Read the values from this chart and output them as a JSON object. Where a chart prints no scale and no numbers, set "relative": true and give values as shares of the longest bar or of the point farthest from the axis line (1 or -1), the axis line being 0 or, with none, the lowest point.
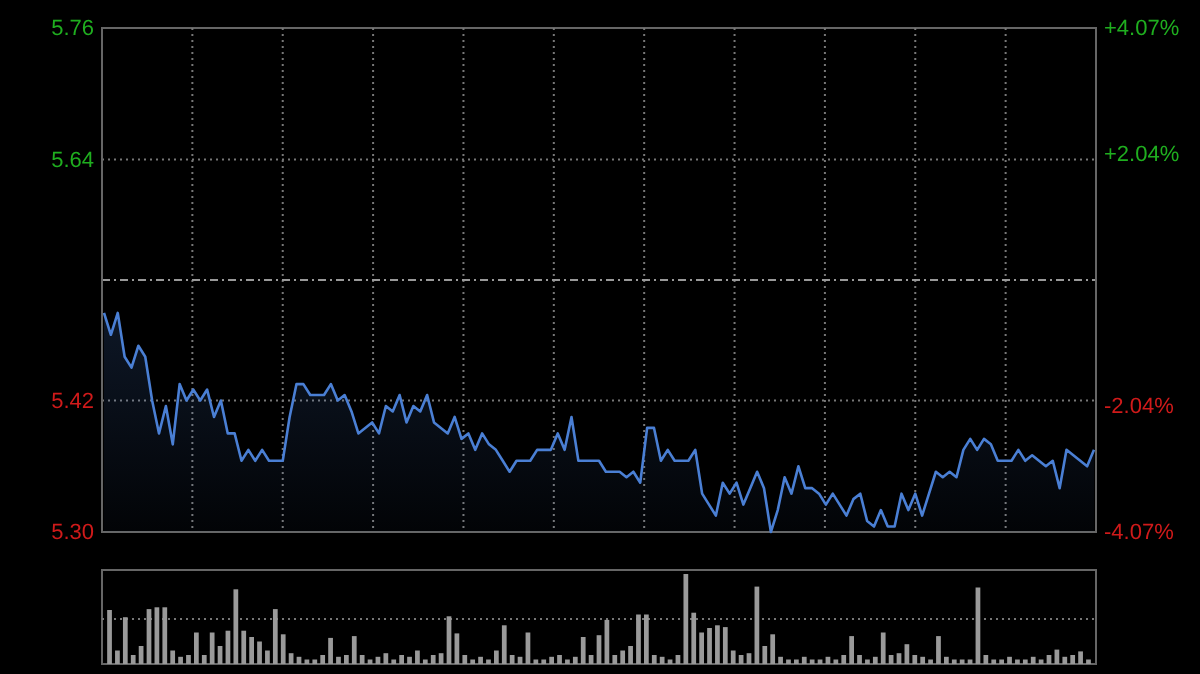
{
  "chart_data": [
    {
      "type": "area",
      "categories": [
        null,
        null,
        null,
        null,
        null,
        null,
        null,
        null,
        null,
        null,
        null,
        null,
        null,
        null,
        null,
        null,
        null,
        null,
        null,
        null,
        null,
        null,
        null,
        null,
        null,
        null,
        null,
        null,
        null,
        null,
        null,
        null,
        null,
        null,
        null,
        null,
        null,
        null,
        null,
        null,
        null,
        null,
        null,
        null,
        null,
        null,
        null,
        null,
        null,
        null,
        null,
        null,
        null,
        null,
        null,
        null,
        null,
        null,
        null,
        null,
        null,
        null,
        null,
        null,
        null,
        null,
        null,
        null,
        null,
        null,
        null,
        null,
        null,
        null,
        null,
        null,
        null,
        null,
        null,
        null,
        null,
        null,
        null,
        null,
        null,
        null,
        null,
        null,
        null,
        null,
        null,
        null,
        null,
        null,
        null,
        null,
        null,
        null,
        null,
        null,
        null,
        null,
        null,
        null,
        null,
        null,
        null,
        null,
        null,
        null,
        null,
        null,
        null,
        null,
        null,
        null,
        null,
        null,
        null,
        null,
        null,
        null,
        null,
        null,
        null,
        null,
        null,
        null,
        null,
        null,
        null,
        null,
        null,
        null,
        null,
        null,
        null,
        null,
        null,
        null,
        null,
        null,
        null,
        null,
        null
      ],
      "series": [
        {
          "color": "#4a7fd4",
          "values": [
            5.5,
            5.48,
            5.5,
            5.46,
            5.45,
            5.47,
            5.46,
            5.42,
            5.39,
            5.415,
            5.38,
            5.435,
            5.42,
            5.43,
            5.42,
            5.43,
            5.405,
            5.42,
            5.39,
            5.39,
            5.365,
            5.375,
            5.365,
            5.375,
            5.365,
            5.365,
            5.365,
            5.405,
            5.435,
            5.435,
            5.425,
            5.425,
            5.425,
            5.435,
            5.42,
            5.425,
            5.41,
            5.39,
            5.395,
            5.4,
            5.39,
            5.415,
            5.41,
            5.425,
            5.4,
            5.415,
            5.41,
            5.425,
            5.4,
            5.395,
            5.39,
            5.405,
            5.385,
            5.39,
            5.375,
            5.39,
            5.38,
            5.375,
            5.365,
            5.355,
            5.365,
            5.365,
            5.365,
            5.375,
            5.375,
            5.375,
            5.39,
            5.375,
            5.405,
            5.365,
            5.365,
            5.365,
            5.365,
            5.355,
            5.355,
            5.355,
            5.35,
            5.355,
            5.345,
            5.395,
            5.395,
            5.365,
            5.375,
            5.365,
            5.365,
            5.365,
            5.375,
            5.335,
            5.325,
            5.315,
            5.345,
            5.335,
            5.345,
            5.325,
            5.34,
            5.355,
            5.34,
            5.3,
            5.32,
            5.35,
            5.335,
            5.36,
            5.34,
            5.34,
            5.335,
            5.325,
            5.335,
            5.325,
            5.315,
            5.33,
            5.335,
            5.31,
            5.305,
            5.32,
            5.305,
            5.305,
            5.335,
            5.32,
            5.335,
            5.315,
            5.335,
            5.355,
            5.35,
            5.355,
            5.35,
            5.375,
            5.385,
            5.375,
            5.385,
            5.38,
            5.365,
            5.365,
            5.365,
            5.375,
            5.365,
            5.37,
            5.365,
            5.36,
            5.365,
            5.34,
            5.375,
            5.37,
            5.365,
            5.36,
            5.375
          ]
        }
      ],
      "ylim": [
        5.3,
        5.76
      ],
      "yticks": [
        {
          "value": 5.3,
          "label": "5.30"
        },
        5.42,
        5.64,
        5.76
      ],
      "y2lim": [
        -4.07,
        4.07
      ],
      "y2ticks": [
        {
          "value": -4.07,
          "label": "-4.07%"
        },
        {
          "value": -2.04,
          "label": "-2.04%"
        },
        {
          "value": 2.04,
          "label": "+2.04%"
        },
        {
          "value": 4.07,
          "label": "+4.07%"
        }
      ],
      "ref_lines": [
        {
          "axis": "y",
          "value": 5.53
        }
      ],
      "grid": true
    },
    {
      "type": "bar",
      "relative": true,
      "grid": "x",
      "ref_lines": [
        {
          "axis": "y",
          "value": 0.5
        }
      ],
      "categories": [
        null,
        null,
        null,
        null,
        null,
        null,
        null,
        null,
        null,
        null,
        null,
        null,
        null,
        null,
        null,
        null,
        null,
        null,
        null,
        null,
        null,
        null,
        null,
        null,
        null,
        null,
        null,
        null,
        null,
        null,
        null,
        null,
        null,
        null,
        null,
        null,
        null,
        null,
        null,
        null,
        null,
        null,
        null,
        null,
        null,
        null,
        null,
        null,
        null,
        null,
        null,
        null,
        null,
        null,
        null,
        null,
        null,
        null,
        null,
        null,
        null,
        null,
        null,
        null,
        null,
        null,
        null,
        null,
        null,
        null,
        null,
        null,
        null,
        null,
        null,
        null,
        null,
        null,
        null,
        null,
        null,
        null,
        null,
        null,
        null,
        null,
        null,
        null,
        null,
        null,
        null,
        null,
        null,
        null,
        null,
        null,
        null,
        null,
        null,
        null,
        null,
        null,
        null,
        null,
        null,
        null,
        null,
        null,
        null,
        null,
        null,
        null,
        null,
        null,
        null,
        null,
        null,
        null,
        null,
        null,
        null,
        null,
        null,
        null,
        null
      ],
      "series": [
        {
          "color": "#9a9a9a",
          "values": [
            0.6,
            0.15,
            0.52,
            0.1,
            0.2,
            0.61,
            0.63,
            0.63,
            0.15,
            0.08,
            0.1,
            0.35,
            0.1,
            0.35,
            0.2,
            0.37,
            0.83,
            0.37,
            0.3,
            0.25,
            0.15,
            0.61,
            0.33,
            0.12,
            0.08,
            0.05,
            0.05,
            0.1,
            0.29,
            0.08,
            0.1,
            0.31,
            0.1,
            0.05,
            0.08,
            0.12,
            0.05,
            0.1,
            0.08,
            0.15,
            0.05,
            0.1,
            0.12,
            0.53,
            0.34,
            0.1,
            0.05,
            0.08,
            0.05,
            0.15,
            0.43,
            0.1,
            0.08,
            0.35,
            0.05,
            0.05,
            0.08,
            0.1,
            0.05,
            0.08,
            0.3,
            0.1,
            0.32,
            0.49,
            0.1,
            0.15,
            0.2,
            0.55,
            0.55,
            0.1,
            0.08,
            0.05,
            0.1,
            1,
            0.57,
            0.35,
            0.4,
            0.43,
            0.41,
            0.15,
            0.1,
            0.12,
            0.86,
            0.2,
            0.33,
            0.08,
            0.05,
            0.05,
            0.08,
            0.05,
            0.05,
            0.08,
            0.05,
            0.1,
            0.31,
            0.1,
            0.05,
            0.08,
            0.35,
            0.1,
            0.12,
            0.22,
            0.1,
            0.08,
            0.05,
            0.31,
            0.08,
            0.05,
            0.05,
            0.05,
            0.85,
            0.1,
            0.05,
            0.05,
            0.08,
            0.05,
            0.05,
            0.08,
            0.05,
            0.1,
            0.16,
            0.08,
            0.1,
            0.14,
            0.05
          ]
        }
      ]
    }
  ]
}
